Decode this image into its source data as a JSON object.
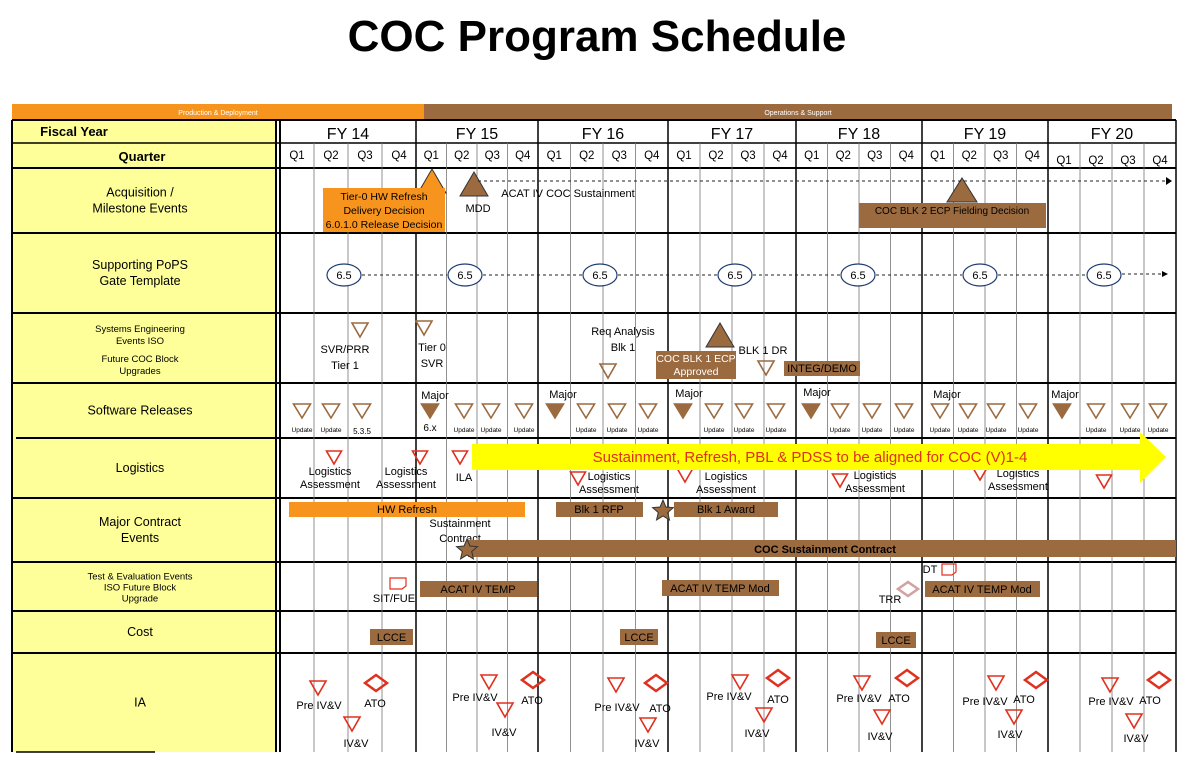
{
  "title": "COC Program Schedule",
  "phases": {
    "production": "Production & Deployment",
    "operations": "Operations & Support"
  },
  "header": {
    "fiscal_year": "Fiscal Year",
    "quarter": "Quarter"
  },
  "fiscal_years": [
    "FY 14",
    "FY 15",
    "FY 16",
    "FY 17",
    "FY 18",
    "FY 19",
    "FY 20"
  ],
  "quarters": [
    "Q1",
    "Q2",
    "Q3",
    "Q4"
  ],
  "rows": [
    {
      "id": "acq",
      "label": [
        "Acquisition /",
        "Milestone Events"
      ]
    },
    {
      "id": "pops",
      "label": [
        "Supporting PoPS",
        "Gate Template"
      ]
    },
    {
      "id": "se",
      "label": [
        "Systems Engineering",
        "Events ISO",
        "Future COC Block",
        "Upgrades"
      ]
    },
    {
      "id": "sw",
      "label": [
        "Software Releases"
      ]
    },
    {
      "id": "log",
      "label": [
        "Logistics"
      ]
    },
    {
      "id": "mc",
      "label": [
        "Major Contract",
        "Events"
      ]
    },
    {
      "id": "te",
      "label": [
        "Test & Evaluation Events",
        "ISO Future Block",
        "Upgrade"
      ]
    },
    {
      "id": "cost",
      "label": [
        "Cost"
      ]
    },
    {
      "id": "ia",
      "label": [
        "IA"
      ]
    }
  ],
  "acquisition": {
    "tier0_box": [
      "Tier-0   HW Refresh",
      "Delivery Decision",
      "6.0.1.0 Release Decision"
    ],
    "mdd": "MDD",
    "acat": "ACAT IV COC Sustainment",
    "blk2": "COC BLK 2 ECP Fielding Decision"
  },
  "pops": {
    "gate_label": "6.5"
  },
  "systems_engineering": {
    "svr_prr": [
      "SVR/PRR",
      "Tier 1"
    ],
    "tier0_svr": [
      "Tier 0",
      "SVR"
    ],
    "req_analysis": [
      "Req Analysis",
      "Blk 1"
    ],
    "blk1_ecp": [
      "COC BLK 1 ECP",
      "Approved"
    ],
    "blk1_dr": "BLK 1 DR",
    "integ_demo": "INTEG/DEMO"
  },
  "software": {
    "major": "Major",
    "update": "Update",
    "v535": "5.3.5",
    "v6x": "6.x"
  },
  "logistics": {
    "assessment": [
      "Logistics",
      "Assessment"
    ],
    "ila": "ILA",
    "banner": "Sustainment, Refresh, PBL & PDSS to be aligned for COC (V)1-4"
  },
  "contracts": {
    "hw_refresh": "HW Refresh",
    "sustainment_contract": [
      "Sustainment",
      "Contract"
    ],
    "blk1_rfp": "Blk 1 RFP",
    "blk1_award": "Blk 1 Award",
    "coc_sustainment": "COC Sustainment  Contract"
  },
  "test_eval": {
    "sit_fue": "SIT/FUE",
    "acat_temp": "ACAT IV TEMP",
    "acat_temp_mod": "ACAT IV TEMP Mod",
    "trr": "TRR",
    "dt": "DT"
  },
  "cost": {
    "lcce": "LCCE"
  },
  "ia": {
    "pre_ivv": "Pre IV&V",
    "ato": "ATO",
    "ivv": "IV&V"
  },
  "colors": {
    "orange": "#f7941d",
    "brown": "#9b6a3f",
    "label_bg": "#ffff99",
    "marker_red": "#e0301e",
    "yellow": "#ffff00"
  }
}
